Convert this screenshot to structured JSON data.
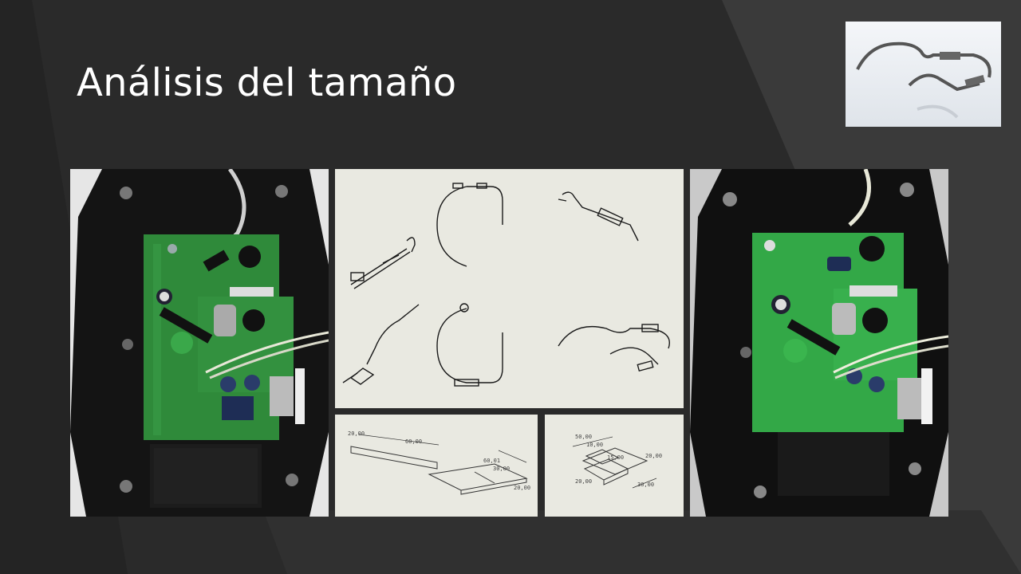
{
  "slide": {
    "title": "Análisis del tamaño"
  },
  "drawing_bottom_left": {
    "dims": [
      "20,00",
      "60,00",
      "60,01",
      "30,00",
      "20,00"
    ]
  },
  "drawing_bottom_right": {
    "dims": [
      "50,00",
      "10,00",
      "15,00",
      "20,00",
      "20,00",
      "30,00"
    ]
  },
  "colors": {
    "background": "#2a2a2a",
    "background_stripe": "#3a3a3a",
    "title": "#ffffff",
    "pcb_green": "#2f8a3a",
    "drawing_paper": "#e9e9e1"
  },
  "icons": {
    "photo_left": "pcb-photo-icon",
    "photo_right": "pcb-photo-icon",
    "cad_thumbnail": "cad-render-icon"
  }
}
